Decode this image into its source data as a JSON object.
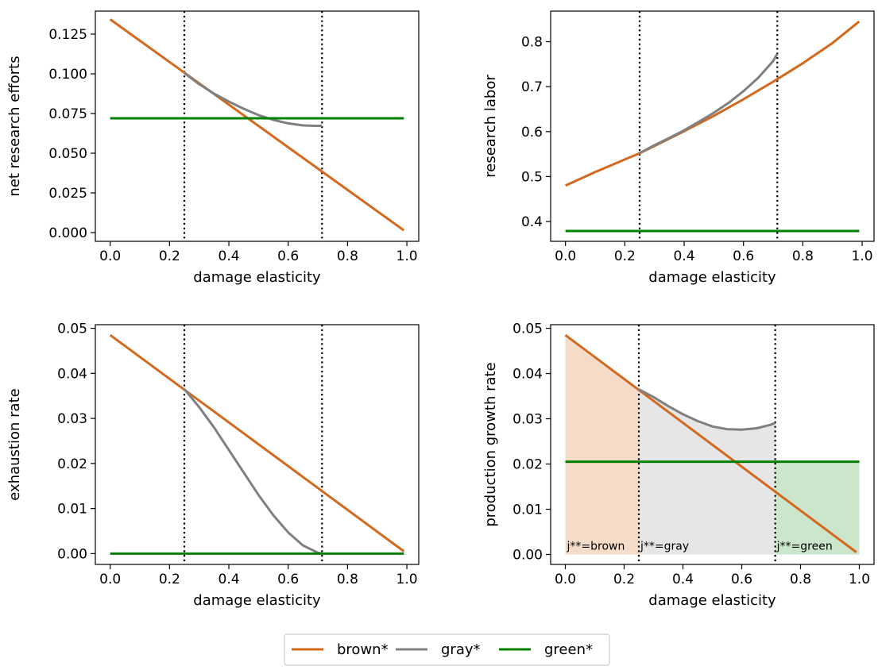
{
  "colors": {
    "brown": "#d2691e",
    "gray": "#808080",
    "green": "#008000",
    "vline": "#000000",
    "fill_brown": "#f4dcc8",
    "fill_gray": "#e6e6e6",
    "fill_green": "#cce6cc"
  },
  "legend": {
    "placement": "bottom-center",
    "entries": [
      {
        "series": "brown",
        "label": "brown*"
      },
      {
        "series": "gray",
        "label": "gray*"
      },
      {
        "series": "green",
        "label": "green*"
      }
    ]
  },
  "chart_data": [
    {
      "type": "line",
      "xlabel": "damage elasticity",
      "ylabel": "net research efforts",
      "xlim": [
        -0.05,
        1.04
      ],
      "ylim": [
        -0.0055,
        0.1395
      ],
      "xticks": [
        "0.0",
        "0.2",
        "0.4",
        "0.6",
        "0.8",
        "1.0"
      ],
      "yticks": [
        "0.000",
        "0.025",
        "0.050",
        "0.075",
        "0.100",
        "0.125"
      ],
      "vlines": [
        0.25,
        0.714
      ],
      "series": [
        {
          "color_key": "brown",
          "x": [
            0.0,
            0.99
          ],
          "y": [
            0.1343,
            0.0014
          ]
        },
        {
          "color_key": "gray",
          "x": [
            0.25,
            0.3,
            0.35,
            0.4,
            0.45,
            0.5,
            0.55,
            0.6,
            0.65,
            0.7,
            0.714
          ],
          "y": [
            0.1005,
            0.0935,
            0.0875,
            0.0825,
            0.078,
            0.074,
            0.071,
            0.0688,
            0.0675,
            0.0672,
            0.0673
          ]
        },
        {
          "color_key": "green",
          "x": [
            0.0,
            0.99
          ],
          "y": [
            0.072,
            0.072
          ]
        }
      ]
    },
    {
      "type": "line",
      "xlabel": "damage elasticity",
      "ylabel": "research labor",
      "xlim": [
        -0.05,
        1.04
      ],
      "ylim": [
        0.356,
        0.868
      ],
      "xticks": [
        "0.0",
        "0.2",
        "0.4",
        "0.6",
        "0.8",
        "1.0"
      ],
      "yticks": [
        "0.4",
        "0.5",
        "0.6",
        "0.7",
        "0.8"
      ],
      "vlines": [
        0.25,
        0.714
      ],
      "series": [
        {
          "color_key": "brown",
          "x": [
            0.0,
            0.1,
            0.2,
            0.25,
            0.3,
            0.4,
            0.5,
            0.6,
            0.7,
            0.8,
            0.9,
            0.99
          ],
          "y": [
            0.48,
            0.51,
            0.538,
            0.552,
            0.568,
            0.601,
            0.635,
            0.672,
            0.711,
            0.752,
            0.797,
            0.845
          ]
        },
        {
          "color_key": "gray",
          "x": [
            0.25,
            0.3,
            0.35,
            0.4,
            0.45,
            0.5,
            0.55,
            0.6,
            0.65,
            0.7,
            0.714
          ],
          "y": [
            0.552,
            0.57,
            0.586,
            0.603,
            0.622,
            0.642,
            0.664,
            0.69,
            0.72,
            0.757,
            0.773
          ]
        },
        {
          "color_key": "green",
          "x": [
            0.0,
            0.99
          ],
          "y": [
            0.379,
            0.379
          ]
        }
      ]
    },
    {
      "type": "line",
      "xlabel": "damage elasticity",
      "ylabel": "exhaustion rate",
      "xlim": [
        -0.05,
        1.04
      ],
      "ylim": [
        -0.0024,
        0.0508
      ],
      "xticks": [
        "0.0",
        "0.2",
        "0.4",
        "0.6",
        "0.8",
        "1.0"
      ],
      "yticks": [
        "0.00",
        "0.01",
        "0.02",
        "0.03",
        "0.04",
        "0.05"
      ],
      "vlines": [
        0.25,
        0.714
      ],
      "series": [
        {
          "color_key": "brown",
          "x": [
            0.0,
            0.99
          ],
          "y": [
            0.0485,
            0.0005
          ]
        },
        {
          "color_key": "gray",
          "x": [
            0.25,
            0.3,
            0.35,
            0.4,
            0.45,
            0.5,
            0.55,
            0.6,
            0.65,
            0.7,
            0.714
          ],
          "y": [
            0.0365,
            0.0325,
            0.028,
            0.023,
            0.018,
            0.013,
            0.0085,
            0.0047,
            0.0018,
            0.0002,
            0.0
          ]
        },
        {
          "color_key": "green",
          "x": [
            0.0,
            0.99
          ],
          "y": [
            0.0,
            0.0
          ]
        }
      ]
    },
    {
      "type": "area",
      "xlabel": "damage elasticity",
      "ylabel": "production growth rate",
      "xlim": [
        -0.05,
        1.05
      ],
      "ylim": [
        -0.0022,
        0.0508
      ],
      "xticks": [
        "0.0",
        "0.2",
        "0.4",
        "0.6",
        "0.8",
        "1.0"
      ],
      "yticks": [
        "0.00",
        "0.01",
        "0.02",
        "0.03",
        "0.04",
        "0.05"
      ],
      "vlines": [
        0.25,
        0.714
      ],
      "series": [
        {
          "color_key": "brown",
          "x": [
            0.0,
            0.99
          ],
          "y": [
            0.0485,
            0.0005
          ]
        },
        {
          "color_key": "gray",
          "x": [
            0.25,
            0.3,
            0.35,
            0.4,
            0.45,
            0.5,
            0.55,
            0.6,
            0.65,
            0.7,
            0.714
          ],
          "y": [
            0.0365,
            0.0348,
            0.0328,
            0.031,
            0.0295,
            0.0283,
            0.0277,
            0.0276,
            0.0279,
            0.0287,
            0.0291
          ]
        },
        {
          "color_key": "green",
          "x": [
            0.0,
            1.0
          ],
          "y": [
            0.0205,
            0.0205
          ]
        }
      ],
      "regions": [
        {
          "color_key": "fill_brown",
          "label": "j**=brown",
          "from": 0.0,
          "to": 0.25,
          "top": "brown"
        },
        {
          "color_key": "fill_gray",
          "label": "j**=gray",
          "from": 0.25,
          "to": 0.714,
          "top": "gray"
        },
        {
          "color_key": "fill_green",
          "label": "j**=green",
          "from": 0.714,
          "to": 1.0,
          "top": "green"
        }
      ]
    }
  ]
}
